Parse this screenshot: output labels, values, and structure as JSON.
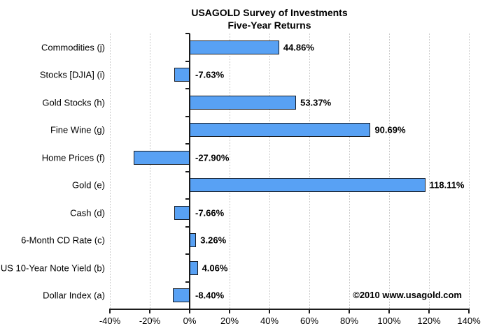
{
  "title": {
    "line1": "USAGOLD Survey of Investments",
    "line2": "Five-Year Returns"
  },
  "copyright": "©2010 www.usagold.com",
  "chart_data": {
    "type": "bar",
    "orientation": "horizontal",
    "title": "USAGOLD Survey of Investments — Five-Year Returns",
    "xlabel": "",
    "ylabel": "",
    "categories": [
      "Commodities (j)",
      "Stocks [DJIA] (i)",
      "Gold Stocks (h)",
      "Fine Wine (g)",
      "Home Prices (f)",
      "Gold (e)",
      "Cash (d)",
      "6-Month CD Rate (c)",
      "US 10-Year Note Yield (b)",
      "Dollar Index (a)"
    ],
    "values": [
      44.86,
      -7.63,
      53.37,
      90.69,
      -27.9,
      118.11,
      -7.66,
      3.26,
      4.06,
      -8.4
    ],
    "value_labels": [
      "44.86%",
      "-7.63%",
      "53.37%",
      "90.69%",
      "-27.90%",
      "118.11%",
      "-7.66%",
      "3.26%",
      "4.06%",
      "-8.40%"
    ],
    "xlim": [
      -40,
      140
    ],
    "x_ticks": [
      -40,
      -20,
      0,
      20,
      40,
      60,
      80,
      100,
      120,
      140
    ],
    "x_tick_labels": [
      "-40%",
      "-20%",
      "0%",
      "20%",
      "40%",
      "60%",
      "80%",
      "100%",
      "120%",
      "140%"
    ],
    "grid": "vertical-dashed",
    "legend": "none",
    "bar_color": "#58a1f4",
    "bar_border_color": "#171b22",
    "axis_color": "#1c1c1c",
    "grid_color": "#c9c9c9"
  }
}
